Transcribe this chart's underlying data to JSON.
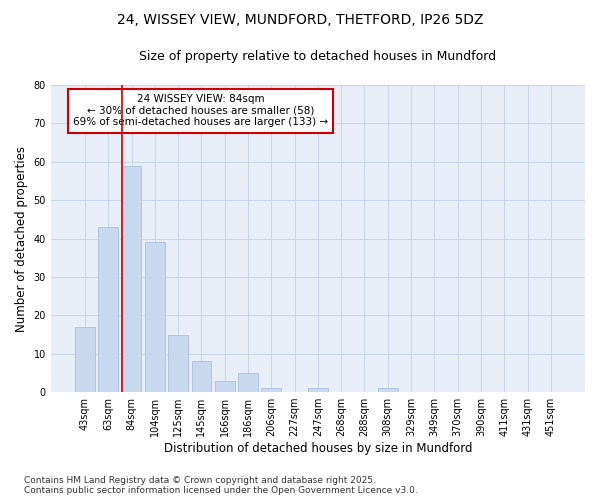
{
  "title_line1": "24, WISSEY VIEW, MUNDFORD, THETFORD, IP26 5DZ",
  "title_line2": "Size of property relative to detached houses in Mundford",
  "xlabel": "Distribution of detached houses by size in Mundford",
  "ylabel": "Number of detached properties",
  "categories": [
    "43sqm",
    "63sqm",
    "84sqm",
    "104sqm",
    "125sqm",
    "145sqm",
    "166sqm",
    "186sqm",
    "206sqm",
    "227sqm",
    "247sqm",
    "268sqm",
    "288sqm",
    "308sqm",
    "329sqm",
    "349sqm",
    "370sqm",
    "390sqm",
    "411sqm",
    "431sqm",
    "451sqm"
  ],
  "values": [
    17,
    43,
    59,
    39,
    15,
    8,
    3,
    5,
    1,
    0,
    1,
    0,
    0,
    1,
    0,
    0,
    0,
    0,
    0,
    0,
    0
  ],
  "bar_color": "#c8d8ee",
  "bar_edge_color": "#aabedd",
  "highlight_line_color": "#cc0000",
  "highlight_bar_index": 2,
  "annotation_text": "24 WISSEY VIEW: 84sqm\n← 30% of detached houses are smaller (58)\n69% of semi-detached houses are larger (133) →",
  "annotation_box_facecolor": "#ffffff",
  "annotation_box_edgecolor": "#cc0000",
  "ylim": [
    0,
    80
  ],
  "yticks": [
    0,
    10,
    20,
    30,
    40,
    50,
    60,
    70,
    80
  ],
  "grid_color": "#c8d4e8",
  "plot_bg_color": "#e8eef8",
  "footnote": "Contains HM Land Registry data © Crown copyright and database right 2025.\nContains public sector information licensed under the Open Government Licence v3.0.",
  "title_fontsize": 10,
  "subtitle_fontsize": 9,
  "axis_label_fontsize": 8.5,
  "tick_fontsize": 7,
  "annotation_fontsize": 7.5,
  "footnote_fontsize": 6.5
}
